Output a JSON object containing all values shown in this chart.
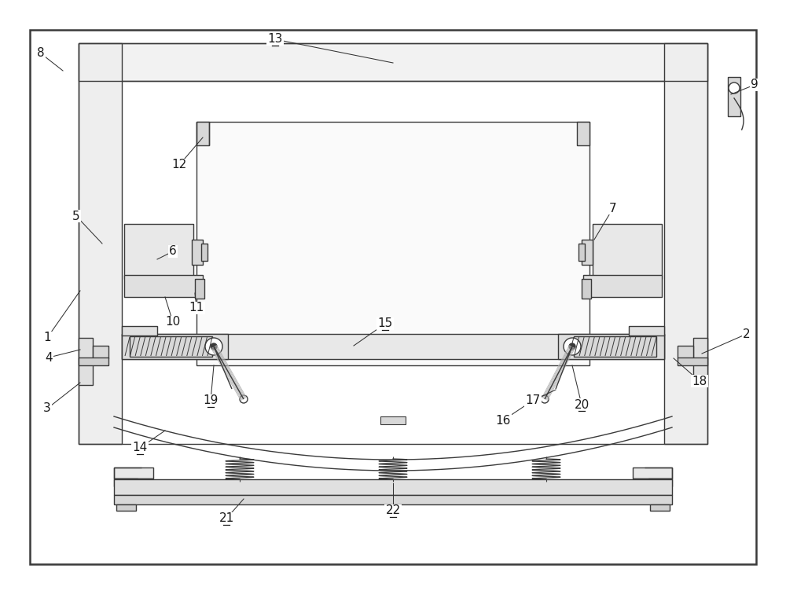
{
  "bg_color": "#ffffff",
  "lc": "#3a3a3a",
  "lw": 1.0,
  "tlw": 1.8,
  "figsize": [
    10.0,
    7.56
  ],
  "dpi": 100
}
